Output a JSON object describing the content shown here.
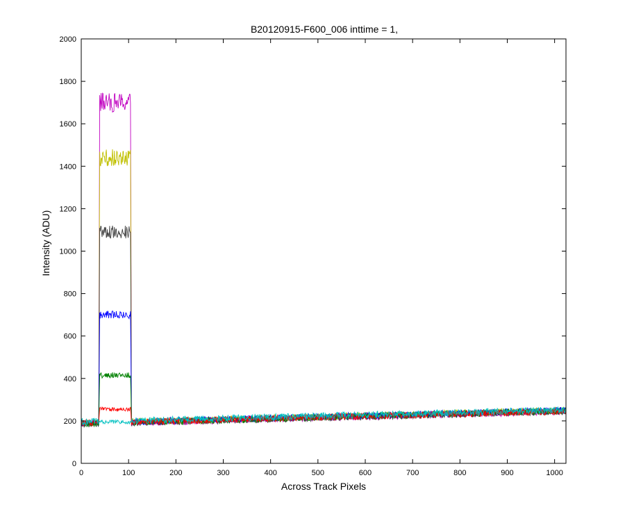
{
  "chart_data": {
    "type": "line",
    "title": "B20120915-F600_006 inttime = 1,",
    "xlabel": "Across Track Pixels",
    "ylabel": "Intensity (ADU)",
    "xlim": [
      0,
      1024
    ],
    "ylim": [
      0,
      2000
    ],
    "xticks": [
      0,
      100,
      200,
      300,
      400,
      500,
      600,
      700,
      800,
      900,
      1000
    ],
    "yticks": [
      0,
      200,
      400,
      600,
      800,
      1000,
      1200,
      1400,
      1600,
      1800,
      2000
    ],
    "grid": false,
    "legend": "none",
    "series": [
      {
        "color": "#c000c0",
        "plateau_start": 38,
        "plateau_end": 105,
        "plateau_level": 1700,
        "noise": 45,
        "baseline_start": 185,
        "baseline_end": 245
      },
      {
        "color": "#c0c000",
        "plateau_start": 38,
        "plateau_end": 105,
        "plateau_level": 1440,
        "noise": 40,
        "baseline_start": 190,
        "baseline_end": 250
      },
      {
        "color": "#404040",
        "plateau_start": 38,
        "plateau_end": 105,
        "plateau_level": 1090,
        "noise": 30,
        "baseline_start": 185,
        "baseline_end": 245
      },
      {
        "color": "#0000ff",
        "plateau_start": 38,
        "plateau_end": 105,
        "plateau_level": 700,
        "noise": 18,
        "baseline_start": 190,
        "baseline_end": 250
      },
      {
        "color": "#008000",
        "plateau_start": 38,
        "plateau_end": 105,
        "plateau_level": 415,
        "noise": 14,
        "baseline_start": 185,
        "baseline_end": 248
      },
      {
        "color": "#ff0000",
        "plateau_start": 38,
        "plateau_end": 105,
        "plateau_level": 255,
        "noise": 10,
        "baseline_start": 190,
        "baseline_end": 245
      },
      {
        "color": "#00c0c0",
        "plateau_start": 38,
        "plateau_end": 105,
        "plateau_level": 195,
        "noise": 9,
        "baseline_start": 195,
        "baseline_end": 252
      }
    ]
  }
}
